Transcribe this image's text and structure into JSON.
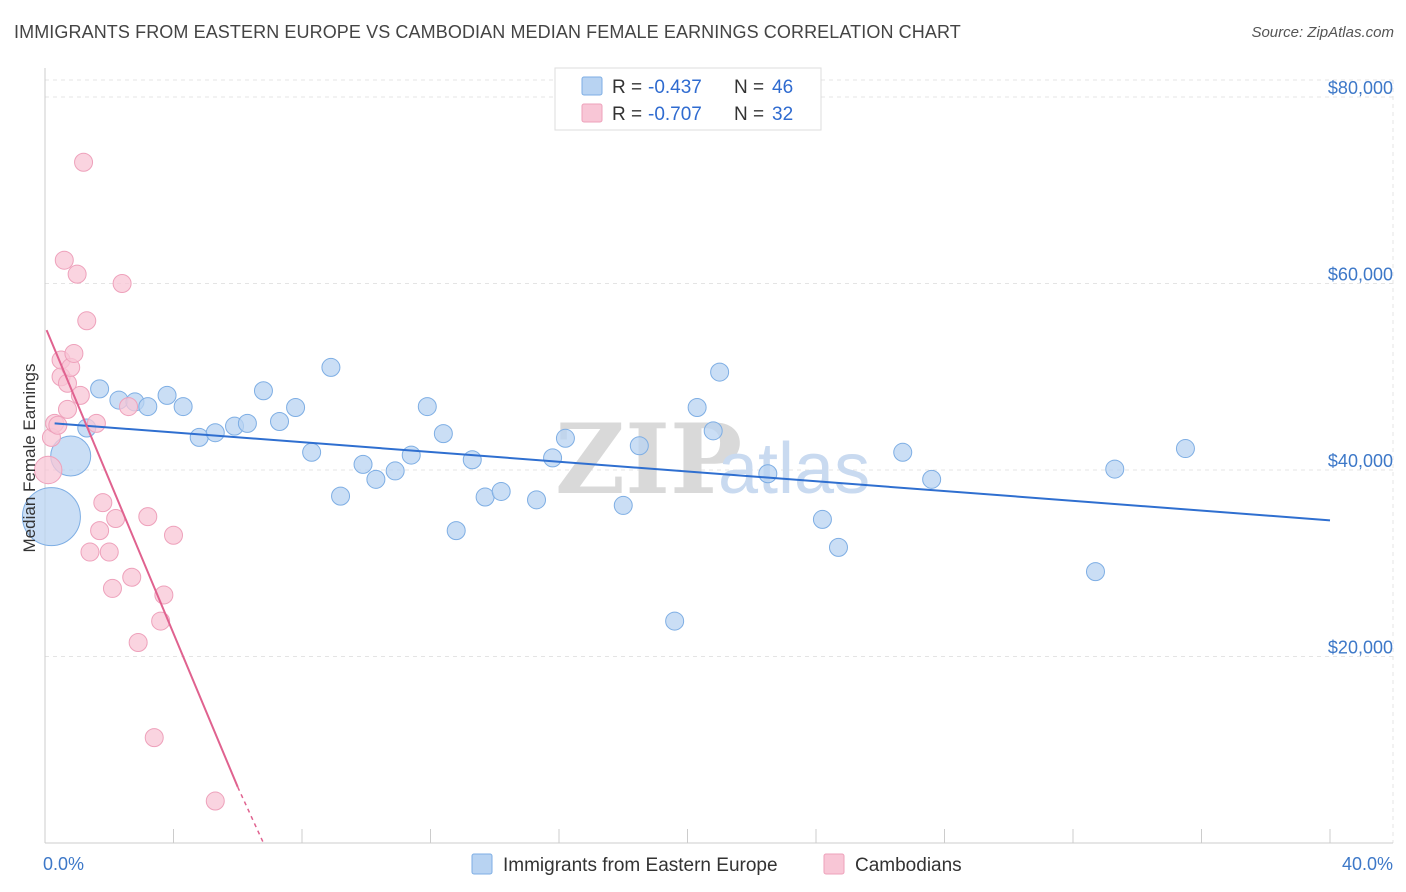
{
  "title": "IMMIGRANTS FROM EASTERN EUROPE VS CAMBODIAN MEDIAN FEMALE EARNINGS CORRELATION CHART",
  "source": "Source: ZipAtlas.com",
  "watermark": {
    "zip": "ZIP",
    "atlas": "atlas"
  },
  "legend": {
    "r_label": "R =",
    "n_label": "N =",
    "series": [
      {
        "r": "-0.437",
        "n": "46"
      },
      {
        "r": "-0.707",
        "n": "32"
      }
    ]
  },
  "colors": {
    "blue_fill": "#b8d3f2",
    "blue_stroke": "#7eaee4",
    "blue_line": "#2f6fd0",
    "pink_fill": "#f8c6d6",
    "pink_stroke": "#eea1bb",
    "pink_line": "#e0628f",
    "tick_text": "#3d78c8"
  },
  "chart_data": {
    "type": "scatter",
    "ylabel": "Median Female Earnings",
    "xlim": [
      0,
      40
    ],
    "ylim": [
      0,
      80000
    ],
    "x_tick_labels": [
      "0.0%",
      "40.0%"
    ],
    "y_ticks": [
      {
        "value": 20000,
        "label": "$20,000"
      },
      {
        "value": 40000,
        "label": "$40,000"
      },
      {
        "value": 60000,
        "label": "$60,000"
      },
      {
        "value": 80000,
        "label": "$80,000"
      }
    ],
    "grid": true,
    "series": [
      {
        "name": "Immigrants from Eastern Europe",
        "points": [
          {
            "x": 0.2,
            "y": 35000,
            "s": 3
          },
          {
            "x": 0.8,
            "y": 41500,
            "s": 2
          },
          {
            "x": 1.3,
            "y": 44500,
            "s": 1
          },
          {
            "x": 1.7,
            "y": 48700,
            "s": 1
          },
          {
            "x": 2.3,
            "y": 47500,
            "s": 1
          },
          {
            "x": 2.8,
            "y": 47300,
            "s": 1
          },
          {
            "x": 3.2,
            "y": 46800,
            "s": 1
          },
          {
            "x": 3.8,
            "y": 48000,
            "s": 1
          },
          {
            "x": 4.3,
            "y": 46800,
            "s": 1
          },
          {
            "x": 4.8,
            "y": 43500,
            "s": 1
          },
          {
            "x": 5.3,
            "y": 44000,
            "s": 1
          },
          {
            "x": 5.9,
            "y": 44700,
            "s": 1
          },
          {
            "x": 6.3,
            "y": 45000,
            "s": 1
          },
          {
            "x": 6.8,
            "y": 48500,
            "s": 1
          },
          {
            "x": 7.3,
            "y": 45200,
            "s": 1
          },
          {
            "x": 7.8,
            "y": 46700,
            "s": 1
          },
          {
            "x": 8.3,
            "y": 41900,
            "s": 1
          },
          {
            "x": 8.9,
            "y": 51000,
            "s": 1
          },
          {
            "x": 9.2,
            "y": 37200,
            "s": 1
          },
          {
            "x": 9.9,
            "y": 40600,
            "s": 1
          },
          {
            "x": 10.3,
            "y": 39000,
            "s": 1
          },
          {
            "x": 10.9,
            "y": 39900,
            "s": 1
          },
          {
            "x": 11.4,
            "y": 41600,
            "s": 1
          },
          {
            "x": 11.9,
            "y": 46800,
            "s": 1
          },
          {
            "x": 12.4,
            "y": 43900,
            "s": 1
          },
          {
            "x": 12.8,
            "y": 33500,
            "s": 1
          },
          {
            "x": 13.3,
            "y": 41100,
            "s": 1
          },
          {
            "x": 13.7,
            "y": 37100,
            "s": 1
          },
          {
            "x": 14.2,
            "y": 37700,
            "s": 1
          },
          {
            "x": 15.3,
            "y": 36800,
            "s": 1
          },
          {
            "x": 15.8,
            "y": 41300,
            "s": 1
          },
          {
            "x": 16.2,
            "y": 43400,
            "s": 1
          },
          {
            "x": 18.0,
            "y": 36200,
            "s": 1
          },
          {
            "x": 18.5,
            "y": 42600,
            "s": 1
          },
          {
            "x": 19.6,
            "y": 23800,
            "s": 1
          },
          {
            "x": 20.3,
            "y": 46700,
            "s": 1
          },
          {
            "x": 20.8,
            "y": 44200,
            "s": 1
          },
          {
            "x": 21.0,
            "y": 50500,
            "s": 1
          },
          {
            "x": 22.5,
            "y": 39600,
            "s": 1
          },
          {
            "x": 24.2,
            "y": 34700,
            "s": 1
          },
          {
            "x": 24.7,
            "y": 31700,
            "s": 1
          },
          {
            "x": 26.7,
            "y": 41900,
            "s": 1
          },
          {
            "x": 27.6,
            "y": 39000,
            "s": 1
          },
          {
            "x": 32.7,
            "y": 29100,
            "s": 1
          },
          {
            "x": 33.3,
            "y": 40100,
            "s": 1
          },
          {
            "x": 35.5,
            "y": 42300,
            "s": 1
          }
        ],
        "trend": {
          "x0": 0.3,
          "y0": 45000,
          "x1": 40,
          "y1": 34600
        }
      },
      {
        "name": "Cambodians",
        "points": [
          {
            "x": 0.1,
            "y": 40000,
            "s": 1.3
          },
          {
            "x": 0.2,
            "y": 43500,
            "s": 1
          },
          {
            "x": 0.3,
            "y": 45000,
            "s": 1
          },
          {
            "x": 0.5,
            "y": 50000,
            "s": 1
          },
          {
            "x": 0.5,
            "y": 51800,
            "s": 1
          },
          {
            "x": 0.6,
            "y": 62500,
            "s": 1
          },
          {
            "x": 0.7,
            "y": 49300,
            "s": 1
          },
          {
            "x": 0.7,
            "y": 46500,
            "s": 1
          },
          {
            "x": 0.8,
            "y": 51000,
            "s": 1
          },
          {
            "x": 0.9,
            "y": 52500,
            "s": 1
          },
          {
            "x": 1.0,
            "y": 61000,
            "s": 1
          },
          {
            "x": 1.1,
            "y": 48000,
            "s": 1
          },
          {
            "x": 1.2,
            "y": 73000,
            "s": 1
          },
          {
            "x": 1.3,
            "y": 56000,
            "s": 1
          },
          {
            "x": 1.4,
            "y": 31200,
            "s": 1
          },
          {
            "x": 1.6,
            "y": 45000,
            "s": 1
          },
          {
            "x": 1.7,
            "y": 33500,
            "s": 1
          },
          {
            "x": 1.8,
            "y": 36500,
            "s": 1
          },
          {
            "x": 2.0,
            "y": 31200,
            "s": 1
          },
          {
            "x": 2.1,
            "y": 27300,
            "s": 1
          },
          {
            "x": 2.2,
            "y": 34800,
            "s": 1
          },
          {
            "x": 2.4,
            "y": 60000,
            "s": 1
          },
          {
            "x": 2.6,
            "y": 46800,
            "s": 1
          },
          {
            "x": 2.7,
            "y": 28500,
            "s": 1
          },
          {
            "x": 2.9,
            "y": 21500,
            "s": 1
          },
          {
            "x": 3.2,
            "y": 35000,
            "s": 1
          },
          {
            "x": 3.4,
            "y": 11300,
            "s": 1
          },
          {
            "x": 3.6,
            "y": 23800,
            "s": 1
          },
          {
            "x": 3.7,
            "y": 26600,
            "s": 1
          },
          {
            "x": 4.0,
            "y": 33000,
            "s": 1
          },
          {
            "x": 5.3,
            "y": 4500,
            "s": 1
          },
          {
            "x": 0.4,
            "y": 44800,
            "s": 1
          }
        ],
        "trend": {
          "x0": 0.05,
          "y0": 55000,
          "x1": 6.0,
          "y1": 6000,
          "dash_to_x": 6.8,
          "dash_to_y": 0
        }
      }
    ]
  }
}
